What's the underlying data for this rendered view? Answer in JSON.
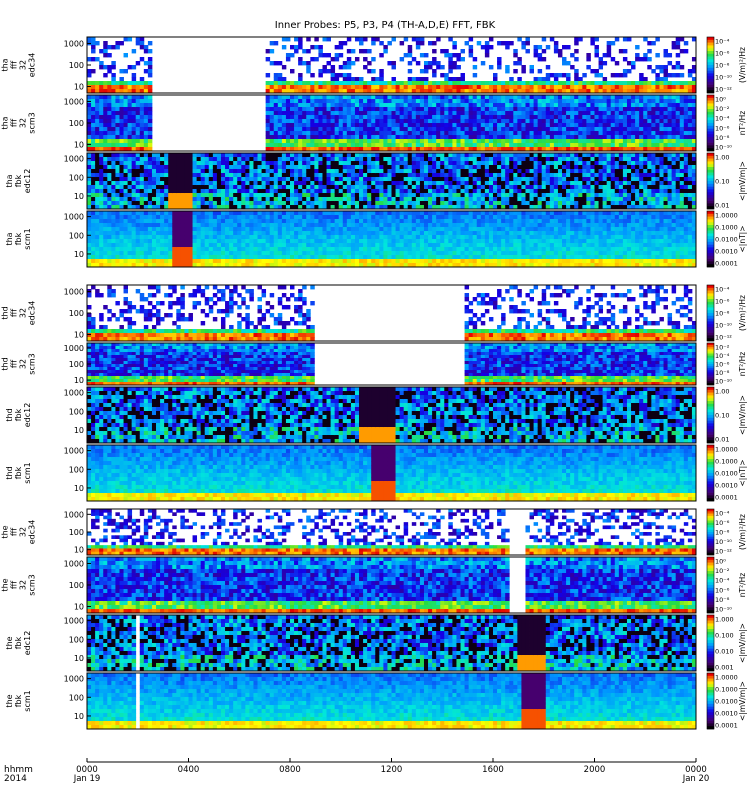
{
  "title": "Inner Probes: P5, P3, P4 (TH-A,D,E) FFT, FBK",
  "time_axis": {
    "corner_labels": [
      "hhmm",
      "2014"
    ],
    "ticks": [
      {
        "label": "0000",
        "date": "Jan 19",
        "hour": 0
      },
      {
        "label": "0400",
        "date": "",
        "hour": 4
      },
      {
        "label": "0800",
        "date": "",
        "hour": 8
      },
      {
        "label": "1200",
        "date": "",
        "hour": 12
      },
      {
        "label": "1600",
        "date": "",
        "hour": 16
      },
      {
        "label": "2000",
        "date": "",
        "hour": 20
      },
      {
        "label": "0000",
        "date": "Jan 20",
        "hour": 24
      }
    ],
    "range_hours": [
      0,
      24
    ]
  },
  "chart_data": {
    "type": "heatmap",
    "x_unit": "hours of 2014 Jan 19",
    "xlim": [
      0,
      24
    ],
    "y_scale": "log",
    "colormap": "rainbow",
    "probes": [
      {
        "panels": [
          {
            "label": [
              "tha",
              "fff",
              "32",
              "edc34"
            ],
            "yticks": [
              "1000",
              "100",
              "10"
            ],
            "ylim": [
              5,
              2000
            ],
            "colorbar": {
              "unit": "(V/m)²/Hz",
              "ticks": [
                "10⁻⁴",
                "10⁻⁶",
                "10⁻⁸",
                "10⁻¹⁰",
                "10⁻¹²"
              ]
            },
            "gaps": [
              [
                2.6,
                7.1
              ]
            ],
            "style": "sparse"
          },
          {
            "label": [
              "tha",
              "fff",
              "32",
              "scm3"
            ],
            "yticks": [
              "1000",
              "100",
              "10"
            ],
            "ylim": [
              5,
              2000
            ],
            "colorbar": {
              "unit": "nT²/Hz",
              "ticks": [
                "10⁰",
                "10⁻²",
                "10⁻⁴",
                "10⁻⁶",
                "10⁻⁸",
                "10⁻¹⁰"
              ]
            },
            "gaps": [
              [
                2.6,
                7.1
              ]
            ],
            "style": "dense"
          },
          {
            "label": [
              "tha",
              "fbk",
              "edc12"
            ],
            "yticks": [
              "1000",
              "100",
              "10"
            ],
            "ylim": [
              2,
              2000
            ],
            "colorbar": {
              "unit": "<|mV/m|>",
              "ticks": [
                "1.00",
                "0.10",
                "0.01"
              ]
            },
            "gaps": [],
            "style": "efbk",
            "events": [
              [
                3.2,
                4.2
              ]
            ]
          },
          {
            "label": [
              "tha",
              "fbk",
              "scm1"
            ],
            "yticks": [
              "1000",
              "100",
              "10"
            ],
            "ylim": [
              2,
              2000
            ],
            "colorbar": {
              "unit": "<|nT|>",
              "ticks": [
                "1.0000",
                "0.1000",
                "0.0100",
                "0.0010",
                "0.0001"
              ]
            },
            "gaps": [],
            "style": "bfbk",
            "events": [
              [
                3.3,
                4.1
              ]
            ]
          }
        ]
      },
      {
        "panels": [
          {
            "label": [
              "thd",
              "fff",
              "32",
              "edc34"
            ],
            "yticks": [
              "1000",
              "100",
              "10"
            ],
            "ylim": [
              5,
              2000
            ],
            "colorbar": {
              "unit": "(V/m)²/Hz",
              "ticks": [
                "10⁻⁴",
                "10⁻⁶",
                "10⁻⁸",
                "10⁻¹⁰",
                "10⁻¹²"
              ]
            },
            "gaps": [
              [
                9.0,
                14.9
              ]
            ],
            "style": "sparse"
          },
          {
            "label": [
              "thd",
              "fff",
              "32",
              "scm3"
            ],
            "yticks": [
              "1000",
              "100",
              "10"
            ],
            "ylim": [
              5,
              2000
            ],
            "colorbar": {
              "unit": "nT²/Hz",
              "ticks": [
                "10⁻²",
                "10⁻⁴",
                "10⁻⁶",
                "10⁻⁸",
                "10⁻¹⁰"
              ]
            },
            "gaps": [
              [
                9.0,
                14.9
              ]
            ],
            "style": "dense"
          },
          {
            "label": [
              "thd",
              "fbk",
              "edc12"
            ],
            "yticks": [
              "1000",
              "100",
              "10"
            ],
            "ylim": [
              2,
              2000
            ],
            "colorbar": {
              "unit": "<|mV/m|>",
              "ticks": [
                "1.00",
                "0.10",
                "0.01"
              ]
            },
            "gaps": [],
            "style": "efbk",
            "events": [
              [
                10.8,
                12.2
              ]
            ]
          },
          {
            "label": [
              "thd",
              "fbk",
              "scm1"
            ],
            "yticks": [
              "1000",
              "100",
              "10"
            ],
            "ylim": [
              2,
              2000
            ],
            "colorbar": {
              "unit": "<|nT|>",
              "ticks": [
                "1.0000",
                "0.1000",
                "0.0100",
                "0.0010",
                "0.0001"
              ]
            },
            "gaps": [],
            "style": "bfbk",
            "events": [
              [
                11.2,
                12.1
              ]
            ]
          }
        ]
      },
      {
        "panels": [
          {
            "label": [
              "the",
              "fff",
              "32",
              "edc34"
            ],
            "yticks": [
              "1000",
              "100",
              "10"
            ],
            "ylim": [
              5,
              2000
            ],
            "colorbar": {
              "unit": "(V/m)²/Hz",
              "ticks": [
                "10⁻⁴",
                "10⁻⁶",
                "10⁻⁸",
                "10⁻¹⁰",
                "10⁻¹²"
              ]
            },
            "gaps": [
              [
                16.6,
                17.2
              ]
            ],
            "style": "sparse"
          },
          {
            "label": [
              "the",
              "fff",
              "32",
              "scm3"
            ],
            "yticks": [
              "1000",
              "100",
              "10"
            ],
            "ylim": [
              5,
              2000
            ],
            "colorbar": {
              "unit": "nT²/Hz",
              "ticks": [
                "10⁰",
                "10⁻²",
                "10⁻⁴",
                "10⁻⁶",
                "10⁻⁸",
                "10⁻¹⁰"
              ]
            },
            "gaps": [
              [
                16.6,
                17.2
              ]
            ],
            "style": "dense"
          },
          {
            "label": [
              "the",
              "fbk",
              "edc12"
            ],
            "yticks": [
              "1000",
              "100",
              "10"
            ],
            "ylim": [
              2,
              2000
            ],
            "colorbar": {
              "unit": "<|mV/m|>",
              "ticks": [
                "1.000",
                "0.100",
                "0.010",
                "0.001"
              ]
            },
            "gaps": [
              [
                1.9,
                2.1
              ]
            ],
            "style": "efbk",
            "events": [
              [
                17.0,
                18.0
              ]
            ]
          },
          {
            "label": [
              "the",
              "fbk",
              "scm1"
            ],
            "yticks": [
              "1000",
              "100",
              "10"
            ],
            "ylim": [
              2,
              2000
            ],
            "colorbar": {
              "unit": "<|mV/m|>",
              "ticks": [
                "1.0000",
                "0.1000",
                "0.0100",
                "0.0010",
                "0.0001"
              ]
            },
            "gaps": [
              [
                1.9,
                2.1
              ]
            ],
            "style": "bfbk",
            "events": [
              [
                17.2,
                18.0
              ]
            ]
          }
        ]
      }
    ]
  }
}
